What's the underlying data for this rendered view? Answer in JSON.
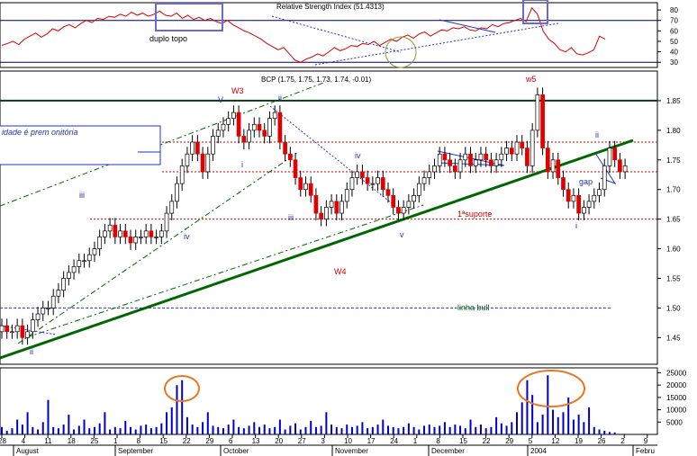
{
  "chart_data": [
    {
      "type": "line",
      "panel": "rsi",
      "title": "Relative Strength Index (51.4313)",
      "y_ticks": [
        30,
        40,
        50,
        60,
        70,
        80
      ],
      "ylim": [
        25,
        87
      ],
      "reference_levels": [
        30,
        70
      ],
      "series": [
        {
          "values": [
            46,
            48,
            50,
            47,
            52,
            55,
            58,
            54,
            57,
            62,
            60,
            64,
            66,
            63,
            67,
            70,
            68,
            72,
            71,
            74,
            73,
            76,
            74,
            78,
            75,
            77,
            74,
            76,
            79,
            75,
            74,
            77,
            72,
            75,
            71,
            73,
            70,
            72,
            69,
            67,
            70,
            66,
            63,
            60,
            58,
            55,
            52,
            48,
            45,
            42,
            44,
            38,
            32,
            30,
            33,
            35,
            38,
            36,
            40,
            44,
            41,
            43,
            46,
            45,
            48,
            47,
            50,
            46,
            49,
            52,
            50,
            54,
            56,
            53,
            57,
            59,
            55,
            58,
            61,
            60,
            63,
            62,
            64,
            61,
            60,
            63,
            62,
            66,
            64,
            67,
            68,
            70,
            72,
            69,
            82,
            76,
            60,
            52,
            48,
            42,
            40,
            44,
            38,
            37,
            39,
            42,
            55,
            52
          ]
        }
      ],
      "annotations": [
        "duplo topo"
      ]
    },
    {
      "type": "candlestick",
      "panel": "price",
      "title": "BCP (1.75, 1.75, 1.73, 1.74, -0.01)",
      "y_ticks": [
        1.45,
        1.5,
        1.55,
        1.6,
        1.65,
        1.7,
        1.75,
        1.8,
        1.85
      ],
      "ylim": [
        1.405,
        1.9
      ],
      "horizontal_levels": [
        1.85,
        1.78,
        1.73,
        1.65,
        1.5
      ],
      "closes": [
        1.47,
        1.46,
        1.46,
        1.47,
        1.45,
        1.46,
        1.48,
        1.49,
        1.5,
        1.5,
        1.52,
        1.53,
        1.55,
        1.56,
        1.57,
        1.58,
        1.58,
        1.59,
        1.6,
        1.62,
        1.63,
        1.64,
        1.62,
        1.63,
        1.62,
        1.61,
        1.62,
        1.62,
        1.63,
        1.62,
        1.62,
        1.63,
        1.66,
        1.68,
        1.71,
        1.74,
        1.76,
        1.78,
        1.76,
        1.73,
        1.76,
        1.79,
        1.8,
        1.81,
        1.82,
        1.83,
        1.79,
        1.78,
        1.8,
        1.81,
        1.8,
        1.79,
        1.82,
        1.83,
        1.78,
        1.76,
        1.75,
        1.72,
        1.7,
        1.71,
        1.69,
        1.66,
        1.65,
        1.67,
        1.68,
        1.66,
        1.68,
        1.7,
        1.72,
        1.73,
        1.72,
        1.71,
        1.71,
        1.72,
        1.7,
        1.69,
        1.67,
        1.66,
        1.67,
        1.68,
        1.69,
        1.71,
        1.72,
        1.73,
        1.74,
        1.76,
        1.75,
        1.74,
        1.73,
        1.75,
        1.76,
        1.74,
        1.75,
        1.76,
        1.75,
        1.74,
        1.75,
        1.76,
        1.77,
        1.76,
        1.78,
        1.77,
        1.74,
        1.8,
        1.86,
        1.77,
        1.73,
        1.75,
        1.72,
        1.7,
        1.68,
        1.69,
        1.66,
        1.67,
        1.68,
        1.69,
        1.7,
        1.74,
        1.77,
        1.75,
        1.73,
        1.74
      ],
      "annotations": [
        {
          "text": "W3",
          "color": "#cc0000"
        },
        {
          "text": "w5",
          "color": "#cc0000"
        },
        {
          "text": "W4",
          "color": "#cc0000"
        },
        {
          "text": "V",
          "color": "#2233aa"
        },
        {
          "text": "ii",
          "color": "#2233aa"
        },
        {
          "text": "iv",
          "color": "#2233aa"
        },
        {
          "text": "i",
          "color": "#2233aa"
        },
        {
          "text": "iii",
          "color": "#2233aa"
        },
        {
          "text": "iii",
          "color": "#2233aa"
        },
        {
          "text": "iv",
          "color": "#2233aa"
        },
        {
          "text": "v",
          "color": "#2233aa"
        },
        {
          "text": "ii",
          "color": "#2233aa"
        },
        {
          "text": "i",
          "color": "#2233aa"
        },
        {
          "text": "ii",
          "color": "#2233aa"
        },
        {
          "text": "gap",
          "color": "#2233aa"
        },
        {
          "text": "1ªsuporte",
          "color": "#cc0000"
        },
        {
          "text": "linha bull",
          "color": "#116611"
        },
        {
          "text": "idade é prem onitória",
          "color": "#2233aa"
        }
      ]
    },
    {
      "type": "bar",
      "panel": "volume",
      "y_ticks": [
        "25000",
        "20000",
        "15000",
        "10000",
        "5000"
      ],
      "ylim": [
        0,
        27000
      ],
      "values": [
        3000,
        1500,
        2500,
        6000,
        4000,
        9000,
        3000,
        2000,
        5000,
        14000,
        3000,
        2500,
        4000,
        8000,
        2000,
        3500,
        6000,
        2500,
        3000,
        4500,
        9000,
        2000,
        3000,
        2500,
        5500,
        3000,
        2000,
        3500,
        4000,
        2500,
        3000,
        4500,
        9000,
        11000,
        20000,
        22000,
        7000,
        4000,
        3000,
        5000,
        9000,
        3500,
        3000,
        2500,
        4000,
        6000,
        3000,
        2500,
        3500,
        5000,
        3000,
        4000,
        2500,
        3000,
        6000,
        2000,
        3500,
        4500,
        2000,
        3000,
        5500,
        3000,
        3500,
        9000,
        4000,
        3000,
        2500,
        4000,
        3000,
        3500,
        5000,
        2500,
        3000,
        4000,
        6000,
        3500,
        3000,
        2500,
        3000,
        4500,
        3000,
        2000,
        3500,
        4000,
        3000,
        3500,
        5000,
        3000,
        4000,
        3500,
        2500,
        6000,
        3000,
        4000,
        2500,
        3000,
        7000,
        4500,
        3500,
        5000,
        9000,
        13000,
        22000,
        16000,
        5000,
        8000,
        24000,
        10000,
        7000,
        9000,
        15000,
        6000,
        8000,
        5000,
        11000,
        3000,
        2000,
        1500,
        1000,
        800
      ]
    }
  ],
  "x_axis": {
    "day_ticks": [
      "28",
      "4",
      "11",
      "18",
      "25",
      "1",
      "8",
      "15",
      "22",
      "29",
      "6",
      "13",
      "20",
      "27",
      "3",
      "10",
      "17",
      "24",
      "1",
      "8",
      "15",
      "22",
      "29",
      "5",
      "12",
      "19",
      "26",
      "2",
      "9"
    ],
    "months": [
      "August",
      "September",
      "October",
      "November",
      "December",
      "2004",
      "Febru"
    ]
  },
  "colors": {
    "up_candle": "#ffffff",
    "down_candle": "#e00000",
    "rsi_line": "#d40000",
    "volume_bar": "#0000cc",
    "trendline": "#006600",
    "level_line": "#0a3a1a",
    "dotted_red": "#cc0000",
    "dotted_blue": "#2233cc",
    "highlight_orange": "#e87722",
    "highlight_box": "#6a6ad0"
  }
}
